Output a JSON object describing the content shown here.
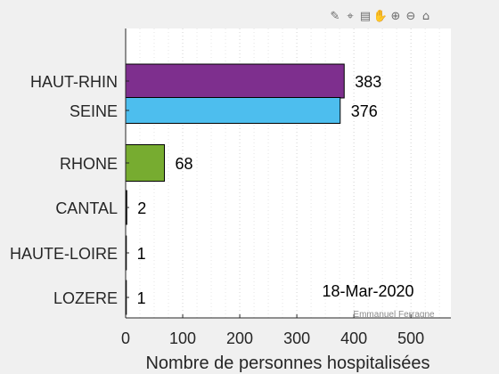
{
  "toolbar": [
    {
      "name": "brush-icon",
      "glyph": "✎"
    },
    {
      "name": "datatip-icon",
      "glyph": "⌖"
    },
    {
      "name": "legend-icon",
      "glyph": "▤"
    },
    {
      "name": "pan-icon",
      "glyph": "✋"
    },
    {
      "name": "zoom-in-icon",
      "glyph": "⊕"
    },
    {
      "name": "zoom-out-icon",
      "glyph": "⊖"
    },
    {
      "name": "home-icon",
      "glyph": "⌂"
    }
  ],
  "chart_data": {
    "type": "bar",
    "orientation": "horizontal",
    "categories": [
      "HAUT-RHIN",
      "SEINE",
      "RHONE",
      "CANTAL",
      "HAUTE-LOIRE",
      "LOZERE"
    ],
    "values": [
      383,
      376,
      68,
      2,
      1,
      1
    ],
    "colors": [
      "#7e2f8e",
      "#4dbeee",
      "#77ac30",
      "#000000",
      "#000000",
      "#000000"
    ],
    "xlabel": "Nombre de personnes hospitalisées",
    "ylabel": "",
    "xlim": [
      0,
      570
    ],
    "xticks": [
      0,
      100,
      200,
      300,
      400,
      500
    ],
    "grid": "vertical dotted",
    "annotation": "18-Mar-2020",
    "credit": "Emmanuel Ferragne"
  }
}
